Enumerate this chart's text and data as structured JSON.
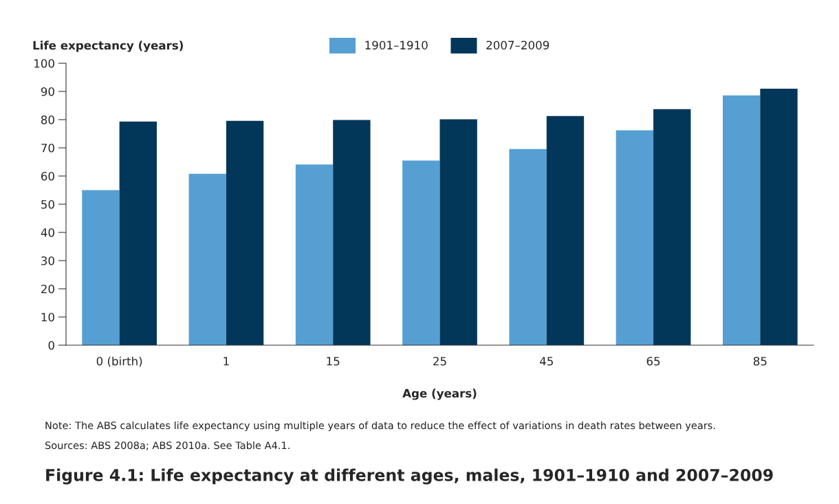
{
  "chart_data": {
    "type": "bar",
    "title": "Figure 4.1: Life expectancy at different ages, males, 1901–1910 and 2007–2009",
    "ylabel": "Life expectancy (years)",
    "xlabel": "Age (years)",
    "categories": [
      "0 (birth)",
      "1",
      "15",
      "25",
      "45",
      "65",
      "85"
    ],
    "series": [
      {
        "name": "1901–1910",
        "color": "#569fd3",
        "values": [
          55.0,
          60.8,
          64.1,
          65.5,
          69.6,
          76.2,
          88.6
        ]
      },
      {
        "name": "2007–2009",
        "color": "#02375a",
        "values": [
          79.3,
          79.6,
          79.9,
          80.1,
          81.3,
          83.7,
          91.0
        ]
      }
    ],
    "ylim": [
      0,
      100
    ],
    "yticks": [
      0,
      10,
      20,
      30,
      40,
      50,
      60,
      70,
      80,
      90,
      100
    ],
    "grid": false,
    "legend": "top",
    "annotations": [
      "Note: The ABS calculates life expectancy using multiple years of data to reduce the effect of variations in death rates between years.",
      "Sources: ABS 2008a; ABS 2010a. See Table A4.1."
    ]
  }
}
